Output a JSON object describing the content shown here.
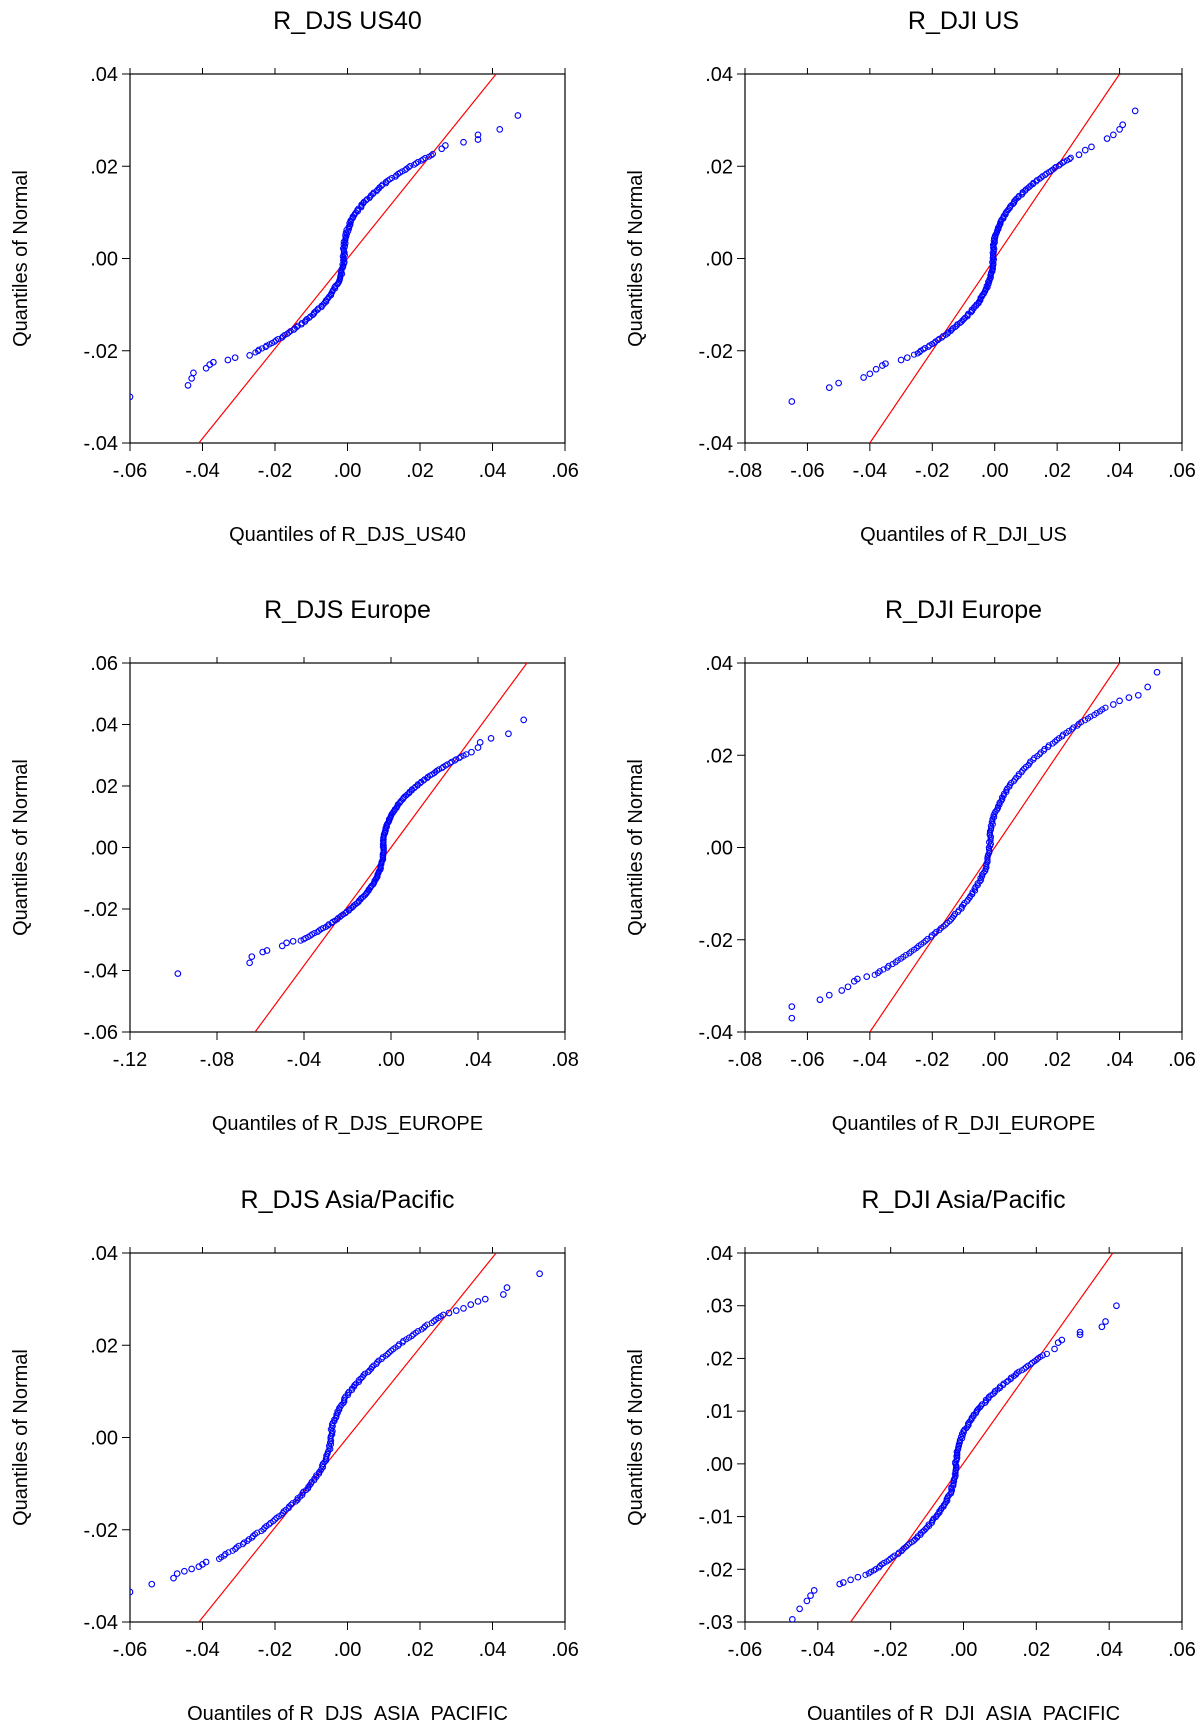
{
  "chart_data": [
    {
      "type": "scatter",
      "title": "R_DJS  US40",
      "xlabel": "Quantiles of R_DJS_US40",
      "ylabel": "Quantiles of Normal",
      "xlim": [
        -0.06,
        0.06
      ],
      "ylim": [
        -0.04,
        0.04
      ],
      "xticks": [
        -0.06,
        -0.04,
        -0.02,
        0.0,
        0.02,
        0.04,
        0.06
      ],
      "yticks": [
        -0.04,
        -0.02,
        0.0,
        0.02,
        0.04
      ],
      "xtick_labels": [
        "-.06",
        "-.04",
        "-.02",
        ".00",
        ".02",
        ".04",
        ".06"
      ],
      "ytick_labels": [
        "-.04",
        "-.02",
        ".00",
        ".02",
        ".04"
      ],
      "reference_line": [
        [
          -0.041,
          -0.04
        ],
        [
          0.041,
          0.04
        ]
      ],
      "tail_points": [
        [
          -0.06,
          -0.03
        ],
        [
          -0.044,
          -0.0275
        ],
        [
          -0.043,
          -0.026
        ],
        [
          -0.0425,
          -0.0248
        ],
        [
          -0.039,
          -0.0238
        ],
        [
          -0.038,
          -0.023
        ],
        [
          -0.037,
          -0.0225
        ],
        [
          -0.033,
          -0.022
        ],
        [
          -0.031,
          -0.0215
        ],
        [
          -0.027,
          -0.021
        ],
        [
          0.026,
          0.0238
        ],
        [
          0.027,
          0.0245
        ],
        [
          0.032,
          0.0252
        ],
        [
          0.036,
          0.0258
        ],
        [
          0.036,
          0.0268
        ],
        [
          0.042,
          0.028
        ],
        [
          0.047,
          0.031
        ]
      ],
      "body": {
        "x_min": -0.026,
        "x_max": 0.024,
        "y_min": -0.0205,
        "y_max": 0.0228,
        "shape": 2.2
      },
      "colors": {
        "points": "#0000ff",
        "line": "#ff0000"
      }
    },
    {
      "type": "scatter",
      "title": "R_DJI US",
      "xlabel": "Quantiles of R_DJI_US",
      "ylabel": "Quantiles of Normal",
      "xlim": [
        -0.08,
        0.06
      ],
      "ylim": [
        -0.04,
        0.04
      ],
      "xticks": [
        -0.08,
        -0.06,
        -0.04,
        -0.02,
        0.0,
        0.02,
        0.04,
        0.06
      ],
      "yticks": [
        -0.04,
        -0.02,
        0.0,
        0.02,
        0.04
      ],
      "xtick_labels": [
        "-.08",
        "-.06",
        "-.04",
        "-.02",
        ".00",
        ".02",
        ".04",
        ".06"
      ],
      "ytick_labels": [
        "-.04",
        "-.02",
        ".00",
        ".02",
        ".04"
      ],
      "reference_line": [
        [
          -0.04,
          -0.04
        ],
        [
          0.04,
          0.04
        ]
      ],
      "tail_points": [
        [
          -0.065,
          -0.031
        ],
        [
          -0.053,
          -0.028
        ],
        [
          -0.05,
          -0.027
        ],
        [
          -0.042,
          -0.0258
        ],
        [
          -0.04,
          -0.025
        ],
        [
          -0.038,
          -0.024
        ],
        [
          -0.036,
          -0.0232
        ],
        [
          -0.035,
          -0.0228
        ],
        [
          -0.03,
          -0.022
        ],
        [
          -0.028,
          -0.0215
        ],
        [
          0.027,
          0.0225
        ],
        [
          0.029,
          0.0235
        ],
        [
          0.031,
          0.0242
        ],
        [
          0.036,
          0.026
        ],
        [
          0.038,
          0.0268
        ],
        [
          0.04,
          0.028
        ],
        [
          0.041,
          0.029
        ],
        [
          0.045,
          0.032
        ]
      ],
      "body": {
        "x_min": -0.026,
        "x_max": 0.025,
        "y_min": -0.021,
        "y_max": 0.022,
        "shape": 2.2
      },
      "colors": {
        "points": "#0000ff",
        "line": "#ff0000"
      }
    },
    {
      "type": "scatter",
      "title": "R_DJS  Europe",
      "xlabel": "Quantiles of R_DJS_EUROPE",
      "ylabel": "Quantiles of Normal",
      "xlim": [
        -0.12,
        0.08
      ],
      "ylim": [
        -0.06,
        0.06
      ],
      "xticks": [
        -0.12,
        -0.08,
        -0.04,
        0.0,
        0.04,
        0.08
      ],
      "yticks": [
        -0.06,
        -0.04,
        -0.02,
        0.0,
        0.02,
        0.04,
        0.06
      ],
      "xtick_labels": [
        "-.12",
        "-.08",
        "-.04",
        ".00",
        ".04",
        ".08"
      ],
      "ytick_labels": [
        "-.06",
        "-.04",
        "-.02",
        ".00",
        ".02",
        ".04",
        ".06"
      ],
      "reference_line": [
        [
          -0.0625,
          -0.06
        ],
        [
          0.0625,
          0.06
        ]
      ],
      "tail_points": [
        [
          -0.098,
          -0.041
        ],
        [
          -0.065,
          -0.0375
        ],
        [
          -0.064,
          -0.0355
        ],
        [
          -0.059,
          -0.034
        ],
        [
          -0.057,
          -0.0335
        ],
        [
          -0.05,
          -0.032
        ],
        [
          -0.048,
          -0.031
        ],
        [
          -0.045,
          -0.0305
        ],
        [
          0.037,
          0.031
        ],
        [
          0.04,
          0.0325
        ],
        [
          0.041,
          0.0342
        ],
        [
          0.046,
          0.0355
        ],
        [
          0.054,
          0.037
        ],
        [
          0.061,
          0.0415
        ]
      ],
      "body": {
        "x_min": -0.042,
        "x_max": 0.035,
        "y_min": -0.0305,
        "y_max": 0.0305,
        "shape": 2.2
      },
      "colors": {
        "points": "#0000ff",
        "line": "#ff0000"
      }
    },
    {
      "type": "scatter",
      "title": "R_DJI  Europe",
      "xlabel": "Quantiles of R_DJI_EUROPE",
      "ylabel": "Quantiles of Normal",
      "xlim": [
        -0.08,
        0.06
      ],
      "ylim": [
        -0.04,
        0.04
      ],
      "xticks": [
        -0.08,
        -0.06,
        -0.04,
        -0.02,
        0.0,
        0.02,
        0.04,
        0.06
      ],
      "yticks": [
        -0.04,
        -0.02,
        0.0,
        0.02,
        0.04
      ],
      "xtick_labels": [
        "-.08",
        "-.06",
        "-.04",
        "-.02",
        ".00",
        ".02",
        ".04",
        ".06"
      ],
      "ytick_labels": [
        "-.04",
        "-.02",
        ".00",
        ".02",
        ".04"
      ],
      "reference_line": [
        [
          -0.04,
          -0.04
        ],
        [
          0.04,
          0.04
        ]
      ],
      "tail_points": [
        [
          -0.065,
          -0.037
        ],
        [
          -0.065,
          -0.0345
        ],
        [
          -0.056,
          -0.033
        ],
        [
          -0.053,
          -0.032
        ],
        [
          -0.049,
          -0.031
        ],
        [
          -0.047,
          -0.0302
        ],
        [
          -0.045,
          -0.029
        ],
        [
          -0.044,
          -0.0285
        ],
        [
          -0.041,
          -0.028
        ],
        [
          0.038,
          0.031
        ],
        [
          0.04,
          0.0318
        ],
        [
          0.043,
          0.0325
        ],
        [
          0.046,
          0.033
        ],
        [
          0.049,
          0.0348
        ],
        [
          0.052,
          0.038
        ]
      ],
      "body": {
        "x_min": -0.039,
        "x_max": 0.036,
        "y_min": -0.0278,
        "y_max": 0.0305,
        "shape": 2.0
      },
      "colors": {
        "points": "#0000ff",
        "line": "#ff0000"
      }
    },
    {
      "type": "scatter",
      "title": "R_DJS  Asia/Pacific",
      "xlabel": "Quantiles of R_DJS_ASIA_PACIFIC",
      "ylabel": "Quantiles of Normal",
      "xlim": [
        -0.06,
        0.06
      ],
      "ylim": [
        -0.04,
        0.04
      ],
      "xticks": [
        -0.06,
        -0.04,
        -0.02,
        0.0,
        0.02,
        0.04,
        0.06
      ],
      "yticks": [
        -0.04,
        -0.02,
        0.0,
        0.02,
        0.04
      ],
      "xtick_labels": [
        "-.06",
        "-.04",
        "-.02",
        ".00",
        ".02",
        ".04",
        ".06"
      ],
      "ytick_labels": [
        "-.04",
        "-.02",
        ".00",
        ".02",
        ".04"
      ],
      "reference_line": [
        [
          -0.041,
          -0.04
        ],
        [
          0.041,
          0.04
        ]
      ],
      "tail_points": [
        [
          -0.06,
          -0.0335
        ],
        [
          -0.054,
          -0.0318
        ],
        [
          -0.048,
          -0.0305
        ],
        [
          -0.047,
          -0.0295
        ],
        [
          -0.045,
          -0.029
        ],
        [
          -0.043,
          -0.0285
        ],
        [
          -0.041,
          -0.028
        ],
        [
          -0.04,
          -0.0275
        ],
        [
          -0.039,
          -0.027
        ],
        [
          0.028,
          0.027
        ],
        [
          0.03,
          0.0275
        ],
        [
          0.032,
          0.028
        ],
        [
          0.034,
          0.0288
        ],
        [
          0.036,
          0.0295
        ],
        [
          0.038,
          0.03
        ],
        [
          0.043,
          0.031
        ],
        [
          0.044,
          0.0325
        ],
        [
          0.053,
          0.0355
        ]
      ],
      "body": {
        "x_min": -0.036,
        "x_max": 0.027,
        "y_min": -0.0265,
        "y_max": 0.0268,
        "shape": 1.8
      },
      "colors": {
        "points": "#0000ff",
        "line": "#ff0000"
      }
    },
    {
      "type": "scatter",
      "title": "R_DJI  Asia/Pacific",
      "xlabel": "Quantiles of R_DJI_ASIA_PACIFIC",
      "ylabel": "Quantiles of Normal",
      "xlim": [
        -0.06,
        0.06
      ],
      "ylim": [
        -0.03,
        0.04
      ],
      "xticks": [
        -0.06,
        -0.04,
        -0.02,
        0.0,
        0.02,
        0.04,
        0.06
      ],
      "yticks": [
        -0.03,
        -0.02,
        -0.01,
        0.0,
        0.01,
        0.02,
        0.03,
        0.04
      ],
      "xtick_labels": [
        "-.06",
        "-.04",
        "-.02",
        ".00",
        ".02",
        ".04",
        ".06"
      ],
      "ytick_labels": [
        "-.03",
        "-.02",
        "-.01",
        ".00",
        ".01",
        ".02",
        ".03",
        ".04"
      ],
      "reference_line": [
        [
          -0.031,
          -0.03
        ],
        [
          0.041,
          0.04
        ]
      ],
      "tail_points": [
        [
          -0.047,
          -0.0295
        ],
        [
          -0.045,
          -0.0275
        ],
        [
          -0.043,
          -0.026
        ],
        [
          -0.042,
          -0.025
        ],
        [
          -0.041,
          -0.024
        ],
        [
          -0.034,
          -0.0228
        ],
        [
          -0.033,
          -0.0225
        ],
        [
          -0.031,
          -0.022
        ],
        [
          -0.029,
          -0.0215
        ],
        [
          0.025,
          0.0218
        ],
        [
          0.026,
          0.023
        ],
        [
          0.027,
          0.0235
        ],
        [
          0.032,
          0.0245
        ],
        [
          0.032,
          0.025
        ],
        [
          0.038,
          0.026
        ],
        [
          0.039,
          0.027
        ],
        [
          0.042,
          0.03
        ]
      ],
      "body": {
        "x_min": -0.027,
        "x_max": 0.023,
        "y_min": -0.0212,
        "y_max": 0.021,
        "shape": 2.0
      },
      "colors": {
        "points": "#0000ff",
        "line": "#ff0000"
      }
    }
  ]
}
